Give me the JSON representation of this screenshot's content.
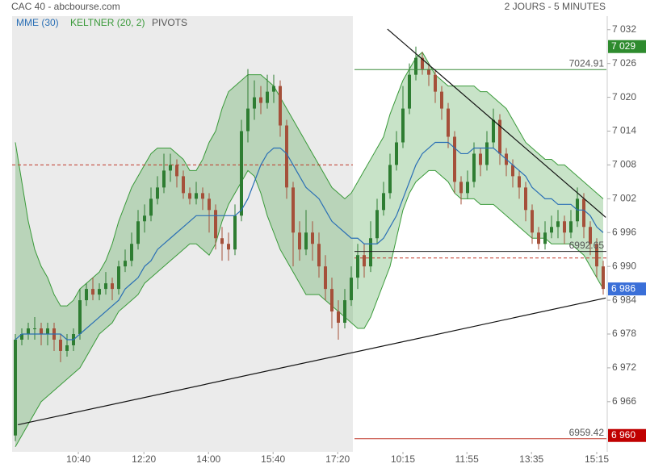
{
  "chart_data": {
    "type": "candlestick",
    "title": "CAC 40 - abcbourse.com",
    "subtitle": "2 JOURS - 5 MINUTES",
    "xlim": [
      0,
      92
    ],
    "xticks": [
      {
        "value": 10.25,
        "label": "10:40"
      },
      {
        "value": 20.4,
        "label": "12:20"
      },
      {
        "value": 30.4,
        "label": "14:00"
      },
      {
        "value": 40.4,
        "label": "15:40"
      },
      {
        "value": 50.4,
        "label": "17:20"
      },
      {
        "value": 60.5,
        "label": "10:15"
      },
      {
        "value": 70.4,
        "label": "11:55"
      },
      {
        "value": 80.4,
        "label": "13:35"
      },
      {
        "value": 90.5,
        "label": "15:15"
      }
    ],
    "ylim": [
      6957.1,
      7034.4
    ],
    "yticks": [
      {
        "value": 6966,
        "label": "6 966"
      },
      {
        "value": 6972,
        "label": "6 972"
      },
      {
        "value": 6978,
        "label": "6 978"
      },
      {
        "value": 6984,
        "label": "6 984"
      },
      {
        "value": 6990,
        "label": "6 990"
      },
      {
        "value": 6996,
        "label": "6 996"
      },
      {
        "value": 7002,
        "label": "7 002"
      },
      {
        "value": 7008,
        "label": "7 008"
      },
      {
        "value": 7014,
        "label": "7 014"
      },
      {
        "value": 7020,
        "label": "7 020"
      },
      {
        "value": 7026,
        "label": "7 026"
      },
      {
        "value": 7032,
        "label": "7 032"
      }
    ],
    "up_color": "#2e7d32",
    "down_color": "#a5503a",
    "open": [
      6960,
      6977,
      6978,
      6979,
      6979,
      6978,
      6979,
      6977,
      6975,
      6976,
      6978,
      6984,
      6986,
      6985,
      6986,
      6987,
      6986,
      6990,
      6991,
      6994,
      6998,
      6999,
      7002,
      7004,
      7007,
      7008,
      7006,
      7003,
      7002,
      7003,
      7002,
      7000,
      6995,
      6994,
      6993,
      6999,
      7014,
      7018,
      7020,
      7019,
      7021,
      7022,
      7015,
      7004,
      6996,
      6993,
      6996,
      6994,
      6990,
      6986,
      6982,
      6980,
      6984,
      6988,
      6992,
      6990,
      6995,
      7000,
      7003,
      7008,
      7012,
      7018,
      7024,
      7027,
      7025,
      7024,
      7021,
      7018,
      7013,
      7005,
      7003,
      7005,
      7010,
      7008,
      7012,
      7016,
      7010,
      7008,
      7006,
      7004,
      7000,
      6996,
      6994,
      6996,
      6997,
      6998,
      6996,
      6998,
      7002,
      6997,
      6994,
      6990
    ],
    "high": [
      6978,
      6979,
      6980,
      6981,
      6980,
      6980,
      6980,
      6978,
      6978,
      6979,
      6986,
      6987,
      6988,
      6987,
      6989,
      6988,
      6991,
      6993,
      6996,
      7000,
      7001,
      7004,
      7006,
      7010,
      7010,
      7009,
      7007,
      7004,
      7005,
      7004,
      7003,
      7001,
      6997,
      6996,
      7001,
      7016,
      7025,
      7023,
      7022,
      7024,
      7024,
      7023,
      7016,
      7005,
      6998,
      7000,
      6998,
      6996,
      6992,
      6988,
      6984,
      6986,
      6990,
      6994,
      6994,
      6998,
      7002,
      7005,
      7010,
      7014,
      7022,
      7026,
      7029,
      7028,
      7026,
      7025,
      7022,
      7019,
      7014,
      7006,
      7007,
      7012,
      7011,
      7014,
      7018,
      7017,
      7011,
      7009,
      7007,
      7005,
      7001,
      6997,
      6998,
      6999,
      7000,
      6999,
      7000,
      7004,
      7003,
      6998,
      6995,
      6991
    ],
    "low": [
      6959,
      6976,
      6977,
      6977,
      6976,
      6976,
      6975,
      6973,
      6974,
      6975,
      6977,
      6983,
      6984,
      6984,
      6985,
      6984,
      6985,
      6989,
      6990,
      6993,
      6996,
      6998,
      7001,
      7003,
      7005,
      7004,
      7002,
      7001,
      7001,
      7000,
      6996,
      6993,
      6991,
      6991,
      6992,
      6998,
      7012,
      7016,
      7017,
      7018,
      7019,
      7013,
      7002,
      6990,
      6991,
      6992,
      6991,
      6988,
      6984,
      6979,
      6977,
      6979,
      6983,
      6986,
      6988,
      6989,
      6994,
      6999,
      7002,
      7007,
      7011,
      7017,
      7023,
      7024,
      7022,
      7019,
      7016,
      7011,
      7003,
      7001,
      7002,
      7004,
      7006,
      7007,
      7011,
      7008,
      7006,
      7004,
      7002,
      6998,
      6994,
      6993,
      6993,
      6995,
      6995,
      6994,
      6995,
      6997,
      6995,
      6992,
      6988,
      6985
    ],
    "close": [
      6977,
      6978,
      6979,
      6979,
      6978,
      6979,
      6977,
      6975,
      6976,
      6978,
      6984,
      6986,
      6985,
      6986,
      6987,
      6986,
      6990,
      6991,
      6994,
      6998,
      6999,
      7002,
      7004,
      7007,
      7008,
      7006,
      7003,
      7002,
      7003,
      7002,
      7000,
      6995,
      6994,
      6993,
      6999,
      7014,
      7018,
      7020,
      7019,
      7021,
      7022,
      7015,
      7004,
      6996,
      6993,
      6996,
      6994,
      6990,
      6986,
      6982,
      6980,
      6984,
      6988,
      6992,
      6990,
      6995,
      7000,
      7003,
      7008,
      7012,
      7018,
      7024,
      7027,
      7025,
      7024,
      7021,
      7018,
      7013,
      7005,
      7003,
      7005,
      7010,
      7008,
      7012,
      7016,
      7010,
      7008,
      7006,
      7004,
      7000,
      6996,
      6994,
      6996,
      6997,
      6998,
      6996,
      6998,
      7002,
      6997,
      6994,
      6990,
      6986
    ],
    "series": [
      {
        "name": "MME (30)",
        "color": "#2a6fb5",
        "values": [
          6977,
          6978,
          6978,
          6978,
          6978,
          6978,
          6978,
          6978,
          6977,
          6977,
          6978,
          6979,
          6980,
          6981,
          6982,
          6983,
          6984,
          6986,
          6987,
          6988,
          6990,
          6991,
          6993,
          6994,
          6995,
          6996,
          6997,
          6998,
          6999,
          6999,
          6999,
          6999,
          6999,
          6999,
          6999,
          7000,
          7002,
          7005,
          7008,
          7010,
          7011,
          7011,
          7010,
          7008,
          7006,
          7004,
          7003,
          7002,
          7000,
          6998,
          6997,
          6996,
          6995,
          6995,
          6994,
          6994,
          6994,
          6995,
          6997,
          6999,
          7002,
          7005,
          7008,
          7010,
          7011,
          7012,
          7012,
          7012,
          7011,
          7010,
          7010,
          7011,
          7011,
          7011,
          7011,
          7010,
          7009,
          7008,
          7007,
          7006,
          7004,
          7003,
          7002,
          7002,
          7001,
          7001,
          7001,
          7000,
          7000,
          6999,
          6997,
          6996
        ]
      },
      {
        "name": "KELTNER (20, 2)",
        "color": "#3a9a3a",
        "upper": [
          7012,
          7005,
          6998,
          6993,
          6990,
          6988,
          6985,
          6983,
          6983,
          6984,
          6986,
          6987,
          6988,
          6989,
          6991,
          6994,
          6998,
          7001,
          7004,
          7006,
          7008,
          7010,
          7011,
          7011,
          7011,
          7010,
          7009,
          7007,
          7007,
          7009,
          7012,
          7014,
          7018,
          7021,
          7022,
          7023,
          7024,
          7024,
          7024,
          7023,
          7022,
          7020,
          7018,
          7016,
          7014,
          7012,
          7010,
          7008,
          7006,
          7004,
          7003,
          7002,
          7003,
          7005,
          7007,
          7009,
          7011,
          7013,
          7017,
          7020,
          7023,
          7025,
          7027,
          7028,
          7026,
          7024,
          7023,
          7022,
          7022,
          7022,
          7022,
          7022,
          7021,
          7021,
          7020,
          7019,
          7018,
          7016,
          7014,
          7012,
          7011,
          7010,
          7009,
          7009,
          7008,
          7008,
          7007,
          7006,
          7005,
          7004,
          7003,
          7002
        ],
        "lower": [
          6958,
          6960,
          6962,
          6964,
          6966,
          6967,
          6968,
          6969,
          6970,
          6971,
          6972,
          6974,
          6976,
          6978,
          6979,
          6980,
          6982,
          6983,
          6984,
          6985,
          6987,
          6988,
          6989,
          6990,
          6991,
          6992,
          6993,
          6994,
          6994,
          6993,
          6992,
          6994,
          6998,
          7001,
          7003,
          7005,
          7007,
          7006,
          7003,
          6999,
          6996,
          6993,
          6991,
          6989,
          6987,
          6985,
          6985,
          6985,
          6984,
          6983,
          6982,
          6981,
          6980,
          6979,
          6979,
          6981,
          6984,
          6987,
          6990,
          6995,
          7000,
          7003,
          7005,
          7006,
          7007,
          7007,
          7006,
          7005,
          7003,
          7002,
          7002,
          7002,
          7001,
          7001,
          7001,
          7000,
          6999,
          6998,
          6997,
          6996,
          6995,
          6995,
          6995,
          6994,
          6994,
          6994,
          6994,
          6993,
          6992,
          6990,
          6988,
          6986
        ]
      }
    ],
    "pivots": {
      "name": "PIVOTS",
      "color": "#c0392b",
      "lines": [
        {
          "value": 7008,
          "x": [
            0,
            52.75
          ]
        },
        {
          "value": 6991.5,
          "x": [
            53,
            92
          ]
        }
      ]
    },
    "levels": [
      {
        "value": 7024.91,
        "color": "#3b8b3b",
        "x": [
          53,
          92
        ]
      },
      {
        "value": 6992.65,
        "color": "#222222",
        "x": [
          53,
          92
        ]
      },
      {
        "value": 6959.42,
        "color": "#c0392b",
        "x": [
          53,
          92
        ]
      }
    ],
    "trendlines": [
      {
        "x": [
          58.1,
          91.9
        ],
        "y": [
          7032.1,
          6998.7
        ]
      },
      {
        "x": [
          0.9,
          91.9
        ],
        "y": [
          6961.9,
          6984.4
        ]
      }
    ],
    "price_labels": [
      {
        "value": 7029,
        "label": "7 029",
        "color": "#2e8b2e"
      },
      {
        "value": 6986,
        "label": "6 986",
        "color": "#3a6fd8"
      },
      {
        "value": 6960,
        "label": "6 960",
        "color": "#c00000"
      }
    ]
  }
}
